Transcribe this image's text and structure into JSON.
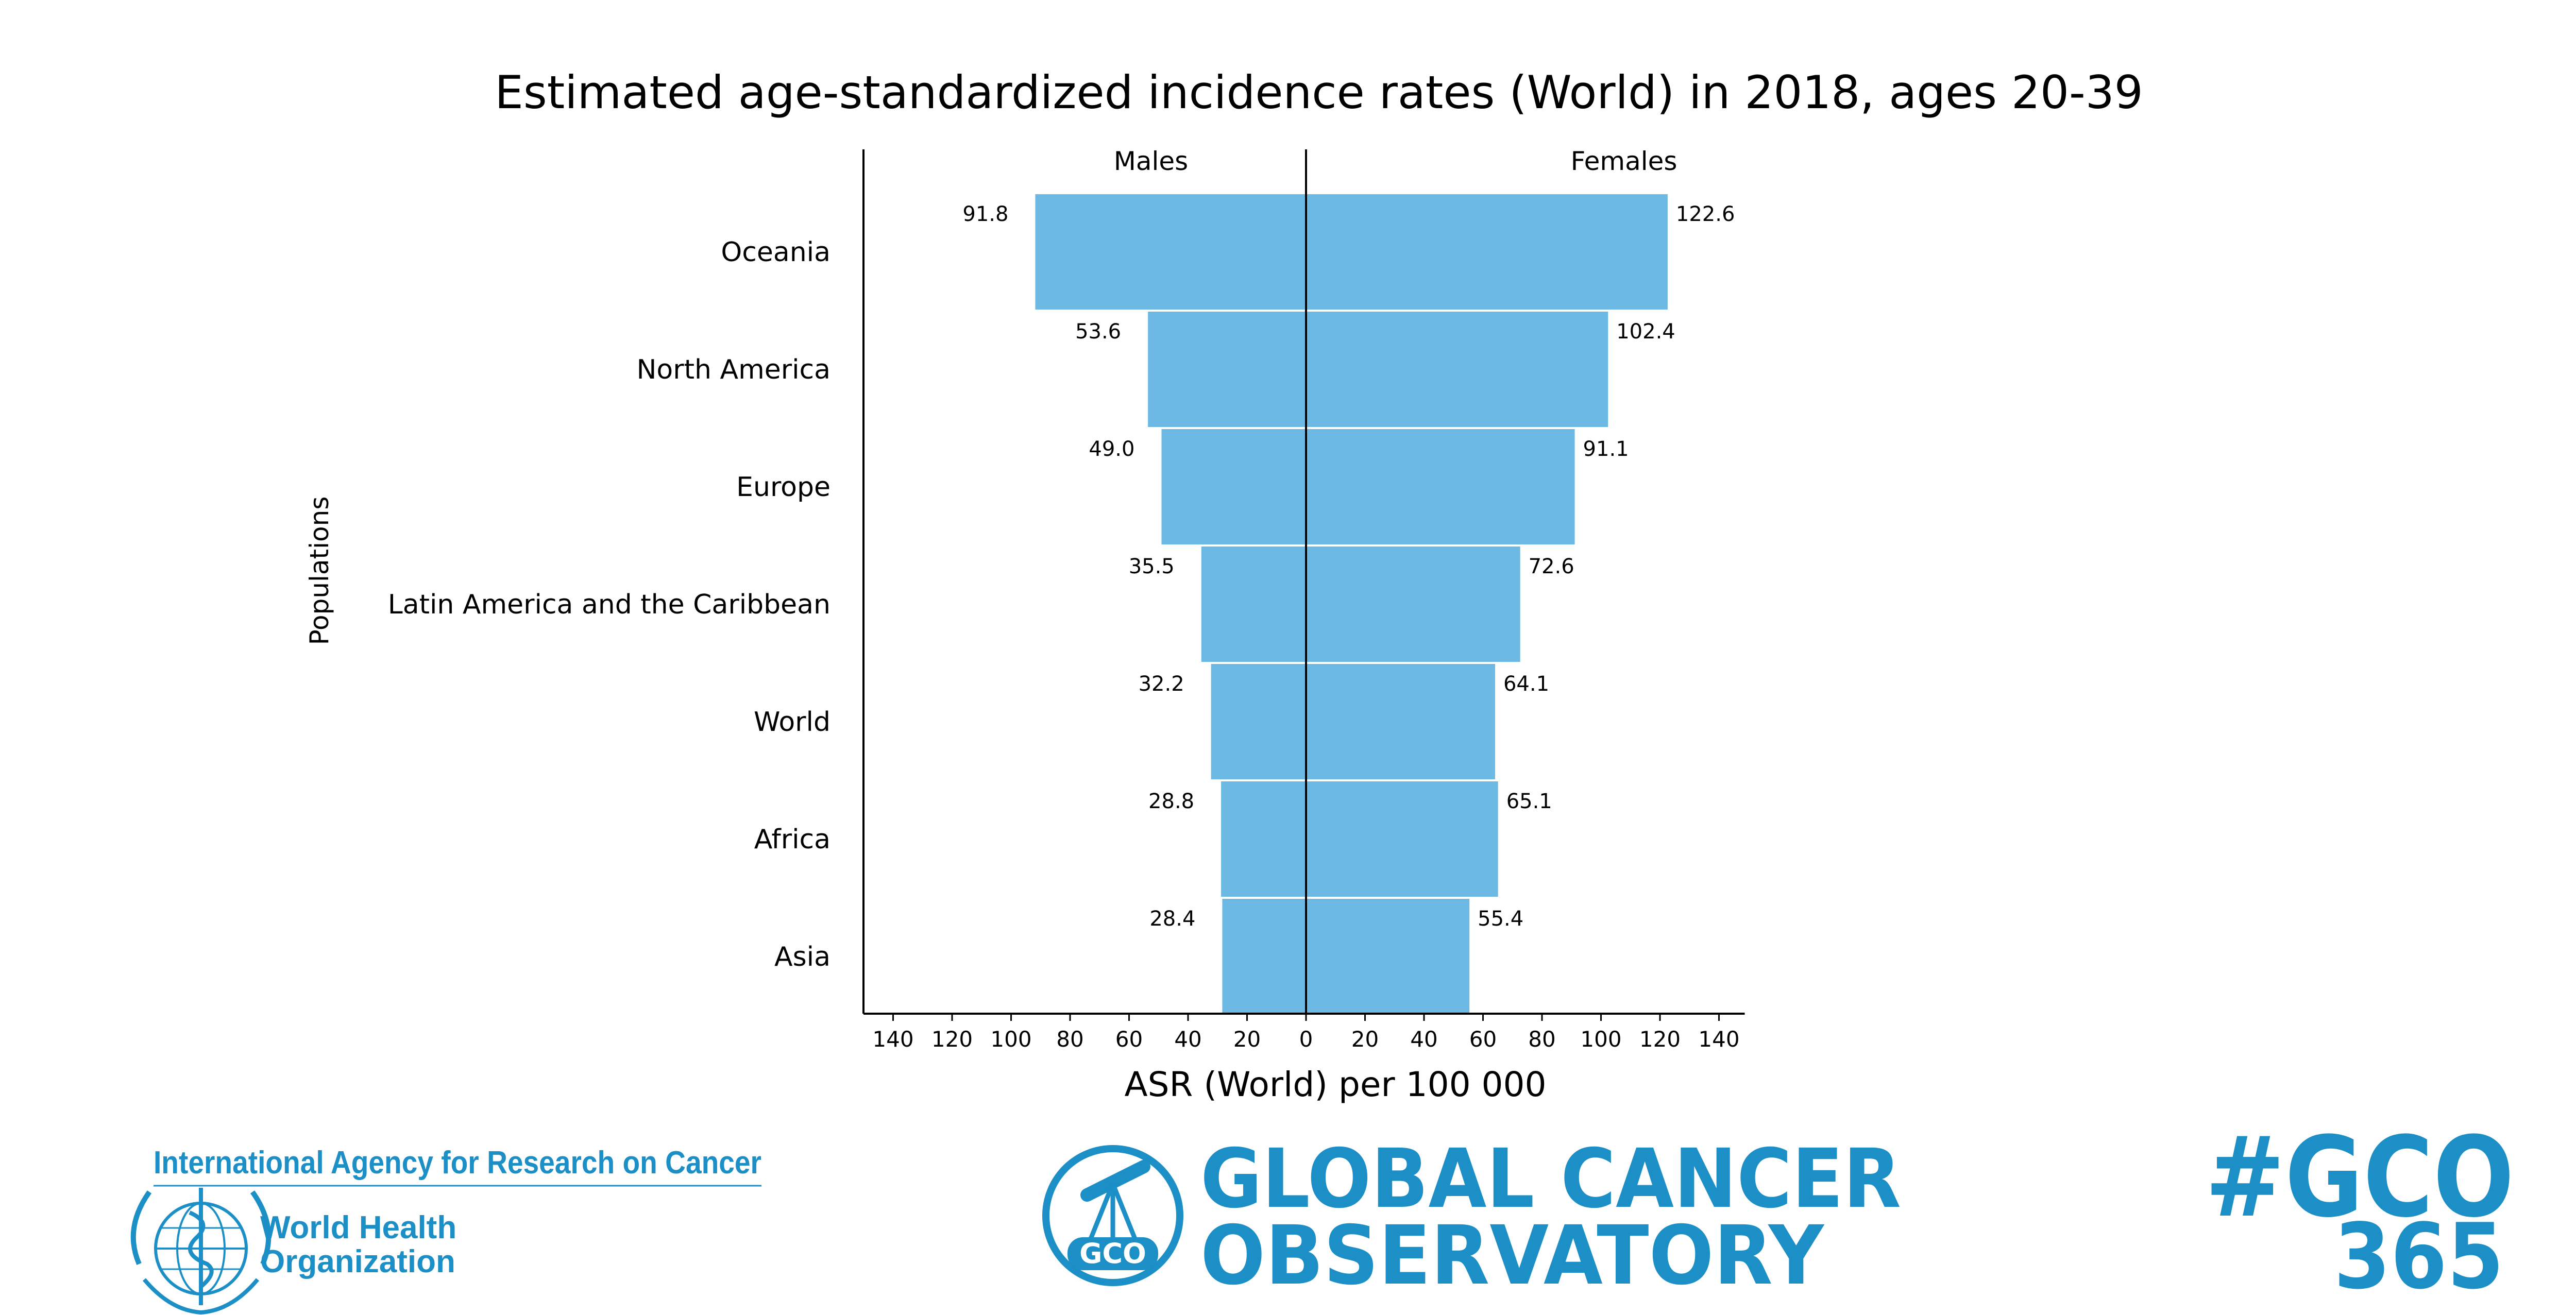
{
  "colors": {
    "bar": "#6cb9e4",
    "brand": "#1b8fc6",
    "axis": "#000000"
  },
  "chart_data": {
    "type": "bar",
    "orientation": "horizontal",
    "layout": "population-pyramid",
    "title": "Estimated age-standardized incidence rates (World) in 2018, ages 20-39",
    "xlabel": "ASR (World) per 100 000",
    "ylabel": "Populations",
    "xlim": [
      -140,
      140
    ],
    "x_ticks": [
      -140,
      -120,
      -100,
      -80,
      -60,
      -40,
      -20,
      0,
      20,
      40,
      60,
      80,
      100,
      120,
      140
    ],
    "x_tick_labels": [
      "140",
      "120",
      "100",
      "80",
      "60",
      "40",
      "20",
      "0",
      "20",
      "40",
      "60",
      "80",
      "100",
      "120",
      "140"
    ],
    "categories": [
      "Oceania",
      "North America",
      "Europe",
      "Latin America and the Caribbean",
      "World",
      "Africa",
      "Asia"
    ],
    "series": [
      {
        "name": "Males",
        "values": [
          91.8,
          53.6,
          49.0,
          35.5,
          32.2,
          28.8,
          28.4
        ],
        "value_labels": [
          "91.8",
          "53.6",
          "49.0",
          "35.5",
          "32.2",
          "28.8",
          "28.4"
        ]
      },
      {
        "name": "Females",
        "values": [
          122.6,
          102.4,
          91.1,
          72.6,
          64.1,
          65.1,
          55.4
        ],
        "value_labels": [
          "122.6",
          "102.4",
          "91.1",
          "72.6",
          "64.1",
          "65.1",
          "55.4"
        ]
      }
    ],
    "grid": false,
    "legend": "none"
  },
  "footer": {
    "iarc_name": "International Agency for Research on Cancer",
    "who_line1": "World Health",
    "who_line2": "Organization",
    "who_emblem_icon": "who-emblem-icon",
    "gco_emblem_icon": "gco-telescope-icon",
    "gco_badge_text": "GCO",
    "gco_line1": "GLOBAL CANCER",
    "gco_line2": "OBSERVATORY",
    "hashtag_line1": "#GCO",
    "hashtag_line2": "365"
  }
}
